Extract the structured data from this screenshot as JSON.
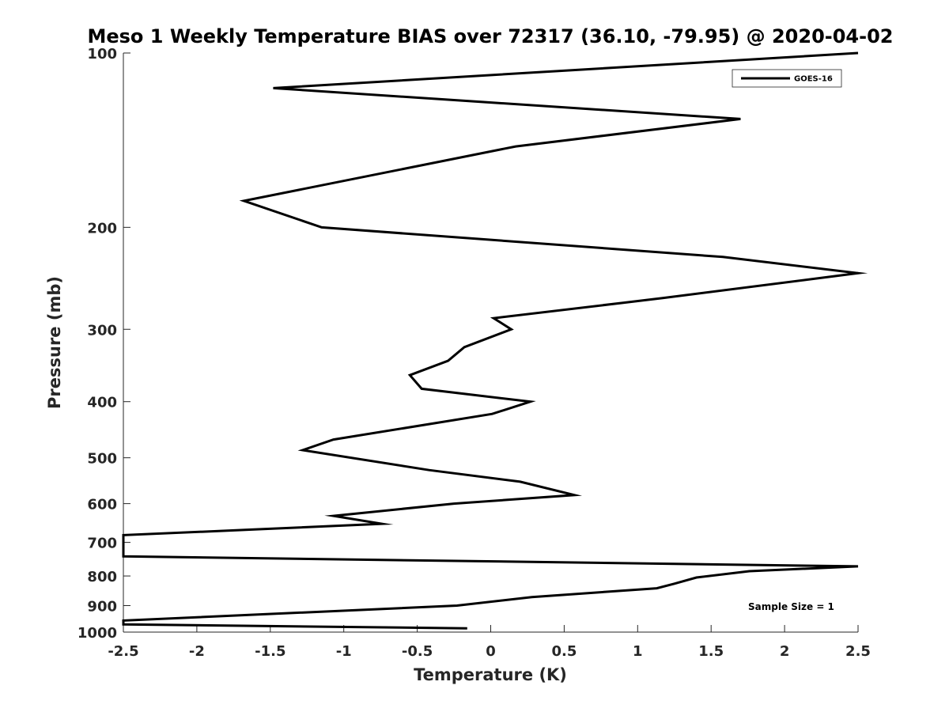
{
  "chart_data": {
    "type": "line",
    "title": "Meso 1 Weekly Temperature BIAS over 72317 (36.10, -79.95) @ 2020-04-02",
    "xlabel": "Temperature (K)",
    "ylabel": "Pressure (mb)",
    "xlim": [
      -2.5,
      2.5
    ],
    "ylim": [
      100,
      1000
    ],
    "yscale": "log",
    "yreversed": true,
    "grid": false,
    "legend_position": "top-right",
    "x_ticks": [
      -2.5,
      -2,
      -1.5,
      -1,
      -0.5,
      0,
      0.5,
      1,
      1.5,
      2,
      2.5
    ],
    "x_tick_labels": [
      "-2.5",
      "-2",
      "-1.5",
      "-1",
      "-0.5",
      "0",
      "0.5",
      "1",
      "1.5",
      "2",
      "2.5"
    ],
    "y_ticks": [
      100,
      200,
      300,
      400,
      500,
      600,
      700,
      800,
      900,
      1000
    ],
    "y_tick_labels": [
      "100",
      "200",
      "300",
      "400",
      "500",
      "600",
      "700",
      "800",
      "900",
      "1000"
    ],
    "annotation": "Sample Size = 1",
    "series": [
      {
        "name": "GOES-16",
        "color": "#000000",
        "x": [
          2.5,
          -1.48,
          1.7,
          0.17,
          -1.68,
          -1.15,
          1.58,
          2.5,
          1.17,
          0.02,
          0.14,
          -0.18,
          -0.29,
          -0.55,
          -0.47,
          0.27,
          0.01,
          -1.07,
          -1.28,
          -0.42,
          0.2,
          0.57,
          -0.25,
          -1.07,
          -0.74,
          -1.61,
          -2.5,
          -2.5,
          2.5,
          1.76,
          1.4,
          1.25,
          1.13,
          0.28,
          -0.23,
          -2.5,
          -2.5,
          -0.16
        ],
        "y": [
          100,
          115,
          130,
          145,
          180,
          200,
          225,
          240,
          265,
          287,
          300,
          322,
          340,
          360,
          380,
          400,
          420,
          465,
          485,
          525,
          550,
          580,
          600,
          630,
          650,
          665,
          680,
          740,
          770,
          785,
          805,
          825,
          840,
          870,
          900,
          955,
          970,
          985
        ]
      }
    ]
  }
}
